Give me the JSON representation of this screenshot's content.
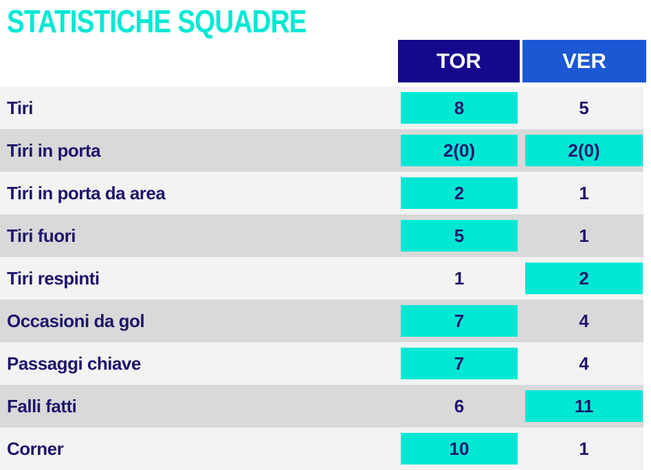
{
  "title": "STATISTICHE SQUADRE",
  "colors": {
    "accent_cyan": "#00e8d4",
    "tor_header_bg": "#16088c",
    "ver_header_bg": "#1b58d4",
    "text_navy": "#1e166b",
    "row_light": "#f3f3f3",
    "row_dark": "#d9d9d9"
  },
  "header": {
    "home_team": "TOR",
    "away_team": "VER"
  },
  "rows": [
    {
      "label": "Tiri",
      "tor": "8",
      "ver": "5",
      "tor_highlight": true,
      "ver_highlight": false
    },
    {
      "label": "Tiri in porta",
      "tor": "2(0)",
      "ver": "2(0)",
      "tor_highlight": true,
      "ver_highlight": true
    },
    {
      "label": "Tiri in porta da area",
      "tor": "2",
      "ver": "1",
      "tor_highlight": true,
      "ver_highlight": false
    },
    {
      "label": "Tiri fuori",
      "tor": "5",
      "ver": "1",
      "tor_highlight": true,
      "ver_highlight": false
    },
    {
      "label": "Tiri respinti",
      "tor": "1",
      "ver": "2",
      "tor_highlight": false,
      "ver_highlight": true
    },
    {
      "label": "Occasioni da gol",
      "tor": "7",
      "ver": "4",
      "tor_highlight": true,
      "ver_highlight": false
    },
    {
      "label": "Passaggi chiave",
      "tor": "7",
      "ver": "4",
      "tor_highlight": true,
      "ver_highlight": false
    },
    {
      "label": "Falli fatti",
      "tor": "6",
      "ver": "11",
      "tor_highlight": false,
      "ver_highlight": true
    },
    {
      "label": "Corner",
      "tor": "10",
      "ver": "1",
      "tor_highlight": true,
      "ver_highlight": false
    }
  ],
  "chart_data": {
    "type": "table",
    "title": "STATISTICHE SQUADRE",
    "columns": [
      "TOR",
      "VER"
    ],
    "categories": [
      "Tiri",
      "Tiri in porta",
      "Tiri in porta da area",
      "Tiri fuori",
      "Tiri respinti",
      "Occasioni da gol",
      "Passaggi chiave",
      "Falli fatti",
      "Corner"
    ],
    "series": [
      {
        "name": "TOR",
        "values": [
          "8",
          "2(0)",
          "2",
          "5",
          "1",
          "7",
          "7",
          "6",
          "10"
        ]
      },
      {
        "name": "VER",
        "values": [
          "5",
          "2(0)",
          "1",
          "1",
          "2",
          "4",
          "4",
          "11",
          "1"
        ]
      }
    ],
    "highlight_rule": "leading (or equal) value per row carries a cyan highlight box",
    "highlighted_cells": {
      "TOR": [
        "Tiri",
        "Tiri in porta",
        "Tiri in porta da area",
        "Tiri fuori",
        "Occasioni da gol",
        "Passaggi chiave",
        "Corner"
      ],
      "VER": [
        "Tiri in porta",
        "Tiri respinti",
        "Falli fatti"
      ]
    }
  }
}
